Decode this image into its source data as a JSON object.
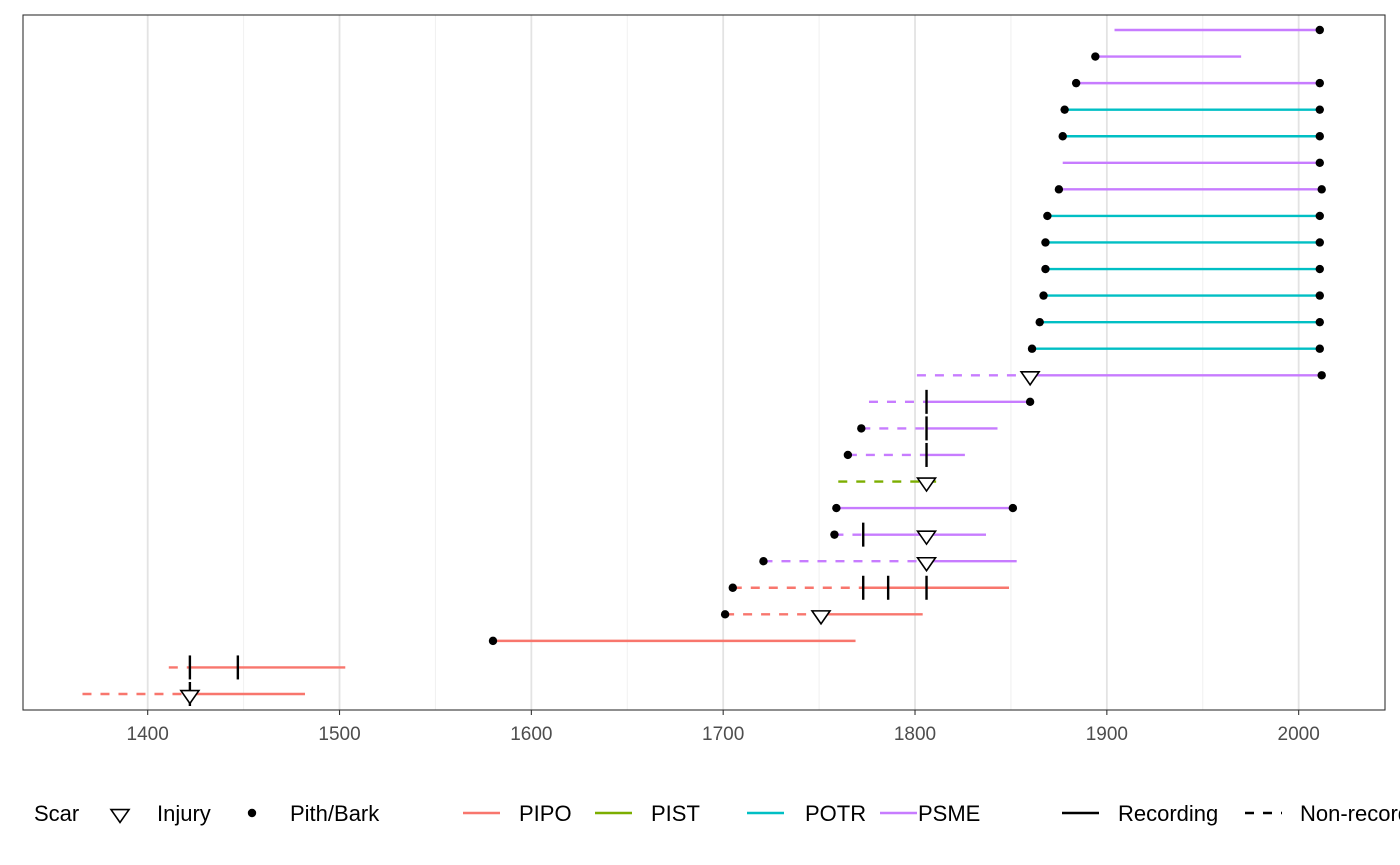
{
  "chart_data": {
    "type": "fire-history-demography",
    "title": "",
    "xlabel": "",
    "ylabel": "",
    "xlim": [
      1335,
      2045
    ],
    "x_ticks": [
      1400,
      1500,
      1600,
      1700,
      1800,
      1900,
      2000
    ],
    "x_minor_ticks": [
      1450,
      1550,
      1650,
      1750,
      1850,
      1950
    ],
    "grid": true,
    "legend_position": "bottom",
    "species_colors": {
      "PIPO": "#F8766D",
      "PIST": "#7CAE00",
      "POTR": "#00BFC4",
      "PSME": "#C77CFF"
    },
    "legend": {
      "scar_title": "Scar",
      "scar_items": [
        "Injury",
        "Pith/Bark"
      ],
      "species_items": [
        "PIPO",
        "PIST",
        "POTR",
        "PSME"
      ],
      "rec_items": [
        "Recording",
        "Non-recording"
      ]
    },
    "series": [
      {
        "species": "PIPO",
        "segments": [
          {
            "from": 1366,
            "to": 1422,
            "type": "non-recording"
          },
          {
            "from": 1422,
            "to": 1482,
            "type": "recording"
          }
        ],
        "scars": [
          1422
        ],
        "injuries": [
          1422
        ],
        "pith": null,
        "bark": null
      },
      {
        "species": "PIPO",
        "segments": [
          {
            "from": 1411,
            "to": 1422,
            "type": "non-recording"
          },
          {
            "from": 1422,
            "to": 1503,
            "type": "recording"
          }
        ],
        "scars": [
          1422,
          1447
        ],
        "injuries": [],
        "pith": null,
        "bark": null
      },
      {
        "species": "PIPO",
        "segments": [
          {
            "from": 1580,
            "to": 1769,
            "type": "recording"
          }
        ],
        "scars": [],
        "injuries": [],
        "pith": 1580,
        "bark": null
      },
      {
        "species": "PIPO",
        "segments": [
          {
            "from": 1701,
            "to": 1751,
            "type": "non-recording"
          },
          {
            "from": 1751,
            "to": 1804,
            "type": "recording"
          }
        ],
        "scars": [],
        "injuries": [
          1751
        ],
        "pith": 1701,
        "bark": null
      },
      {
        "species": "PIPO",
        "segments": [
          {
            "from": 1705,
            "to": 1773,
            "type": "non-recording"
          },
          {
            "from": 1773,
            "to": 1849,
            "type": "recording"
          }
        ],
        "scars": [
          1773,
          1786,
          1806
        ],
        "injuries": [],
        "pith": 1705,
        "bark": null
      },
      {
        "species": "PSME",
        "segments": [
          {
            "from": 1721,
            "to": 1806,
            "type": "non-recording"
          },
          {
            "from": 1806,
            "to": 1853,
            "type": "recording"
          }
        ],
        "scars": [],
        "injuries": [
          1806
        ],
        "pith": 1721,
        "bark": null
      },
      {
        "species": "PSME",
        "segments": [
          {
            "from": 1758,
            "to": 1773,
            "type": "non-recording"
          },
          {
            "from": 1773,
            "to": 1837,
            "type": "recording"
          }
        ],
        "scars": [
          1773
        ],
        "injuries": [
          1806
        ],
        "pith": 1758,
        "bark": null
      },
      {
        "species": "PSME",
        "segments": [
          {
            "from": 1759,
            "to": 1851,
            "type": "recording"
          }
        ],
        "scars": [],
        "injuries": [],
        "pith": 1759,
        "bark": 1851
      },
      {
        "species": "PIST",
        "segments": [
          {
            "from": 1760,
            "to": 1811,
            "type": "non-recording"
          }
        ],
        "scars": [],
        "injuries": [
          1806
        ],
        "pith": null,
        "bark": null
      },
      {
        "species": "PSME",
        "segments": [
          {
            "from": 1765,
            "to": 1806,
            "type": "non-recording"
          },
          {
            "from": 1806,
            "to": 1826,
            "type": "recording"
          }
        ],
        "scars": [
          1806
        ],
        "injuries": [],
        "pith": 1765,
        "bark": null
      },
      {
        "species": "PSME",
        "segments": [
          {
            "from": 1772,
            "to": 1806,
            "type": "non-recording"
          },
          {
            "from": 1806,
            "to": 1843,
            "type": "recording"
          }
        ],
        "scars": [
          1806
        ],
        "injuries": [],
        "pith": 1772,
        "bark": null
      },
      {
        "species": "PSME",
        "segments": [
          {
            "from": 1776,
            "to": 1806,
            "type": "non-recording"
          },
          {
            "from": 1806,
            "to": 1860,
            "type": "recording"
          }
        ],
        "scars": [
          1806
        ],
        "injuries": [],
        "pith": null,
        "bark": 1860
      },
      {
        "species": "PSME",
        "segments": [
          {
            "from": 1801,
            "to": 1860,
            "type": "non-recording"
          },
          {
            "from": 1860,
            "to": 2012,
            "type": "recording"
          }
        ],
        "scars": [],
        "injuries": [
          1860
        ],
        "pith": null,
        "bark": 2012
      },
      {
        "species": "POTR",
        "segments": [
          {
            "from": 1861,
            "to": 2011,
            "type": "recording"
          }
        ],
        "scars": [],
        "injuries": [],
        "pith": 1861,
        "bark": 2011
      },
      {
        "species": "POTR",
        "segments": [
          {
            "from": 1865,
            "to": 2011,
            "type": "recording"
          }
        ],
        "scars": [],
        "injuries": [],
        "pith": 1865,
        "bark": 2011
      },
      {
        "species": "POTR",
        "segments": [
          {
            "from": 1867,
            "to": 2011,
            "type": "recording"
          }
        ],
        "scars": [],
        "injuries": [],
        "pith": 1867,
        "bark": 2011
      },
      {
        "species": "POTR",
        "segments": [
          {
            "from": 1868,
            "to": 2011,
            "type": "recording"
          }
        ],
        "scars": [],
        "injuries": [],
        "pith": 1868,
        "bark": 2011
      },
      {
        "species": "POTR",
        "segments": [
          {
            "from": 1868,
            "to": 2011,
            "type": "recording"
          }
        ],
        "scars": [],
        "injuries": [],
        "pith": 1868,
        "bark": 2011
      },
      {
        "species": "POTR",
        "segments": [
          {
            "from": 1869,
            "to": 2011,
            "type": "recording"
          }
        ],
        "scars": [],
        "injuries": [],
        "pith": 1869,
        "bark": 2011
      },
      {
        "species": "PSME",
        "segments": [
          {
            "from": 1875,
            "to": 2012,
            "type": "recording"
          }
        ],
        "scars": [],
        "injuries": [],
        "pith": 1875,
        "bark": 2012
      },
      {
        "species": "PSME",
        "segments": [
          {
            "from": 1877,
            "to": 2011,
            "type": "recording"
          }
        ],
        "scars": [],
        "injuries": [],
        "pith": null,
        "bark": 2011
      },
      {
        "species": "POTR",
        "segments": [
          {
            "from": 1877,
            "to": 2011,
            "type": "recording"
          }
        ],
        "scars": [],
        "injuries": [],
        "pith": 1877,
        "bark": 2011
      },
      {
        "species": "POTR",
        "segments": [
          {
            "from": 1878,
            "to": 2011,
            "type": "recording"
          }
        ],
        "scars": [],
        "injuries": [],
        "pith": 1878,
        "bark": 2011
      },
      {
        "species": "PSME",
        "segments": [
          {
            "from": 1884,
            "to": 2011,
            "type": "recording"
          }
        ],
        "scars": [],
        "injuries": [],
        "pith": 1884,
        "bark": 2011
      },
      {
        "species": "PSME",
        "segments": [
          {
            "from": 1894,
            "to": 1970,
            "type": "recording"
          }
        ],
        "scars": [],
        "injuries": [],
        "pith": 1894,
        "bark": null
      },
      {
        "species": "PSME",
        "segments": [
          {
            "from": 1904,
            "to": 2011,
            "type": "recording"
          }
        ],
        "scars": [],
        "injuries": [],
        "pith": null,
        "bark": 2011
      }
    ]
  }
}
